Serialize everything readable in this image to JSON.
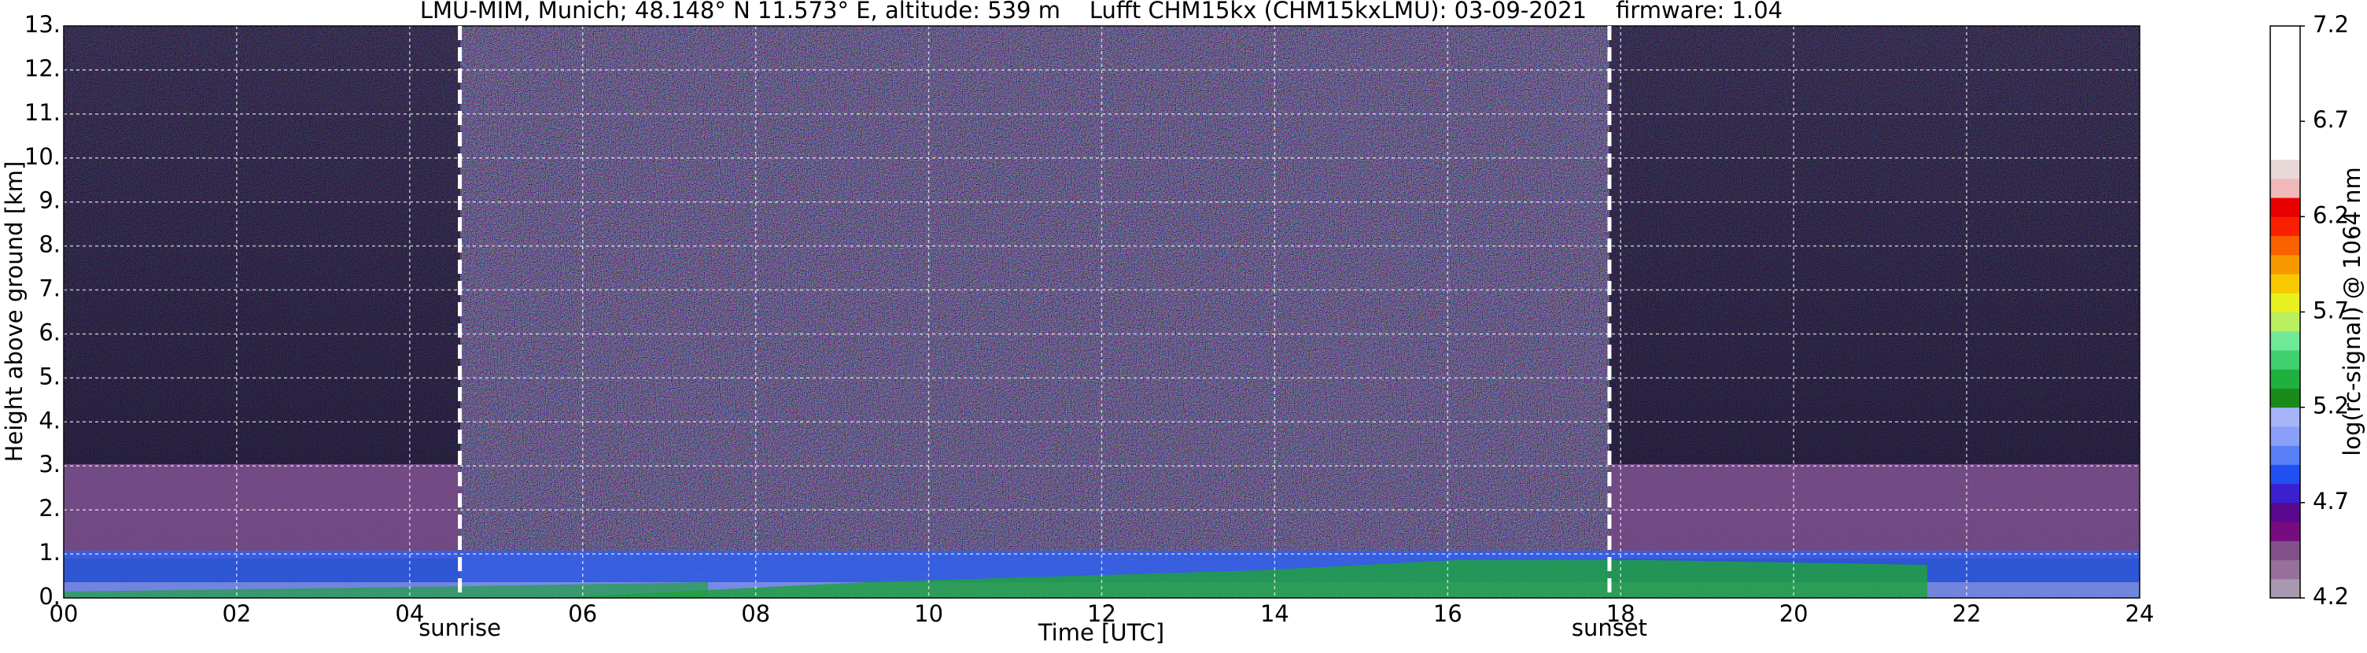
{
  "chart_data": {
    "type": "heatmap",
    "title": "LMU-MIM, Munich; 48.148° N 11.573° E, altitude: 539 m    Lufft CHM15kx (CHM15kxLMU): 03-09-2021    firmware: 1.04",
    "x_label": "Time [UTC]",
    "y_label": "Height above ground [km]",
    "colorbar_label": "log(rc-signal) @ 1064 nm",
    "xlim": [
      0,
      24
    ],
    "xticks": [
      {
        "value": 0,
        "label": "00"
      },
      {
        "value": 2,
        "label": "02"
      },
      {
        "value": 4,
        "label": "04"
      },
      {
        "value": 6,
        "label": "06"
      },
      {
        "value": 8,
        "label": "08"
      },
      {
        "value": 10,
        "label": "10"
      },
      {
        "value": 12,
        "label": "12"
      },
      {
        "value": 14,
        "label": "14"
      },
      {
        "value": 16,
        "label": "16"
      },
      {
        "value": 18,
        "label": "18"
      },
      {
        "value": 20,
        "label": "20"
      },
      {
        "value": 22,
        "label": "22"
      },
      {
        "value": 24,
        "label": "24"
      }
    ],
    "ylim": [
      0,
      13
    ],
    "yticks": [
      {
        "value": 0,
        "label": "0."
      },
      {
        "value": 1,
        "label": "1."
      },
      {
        "value": 2,
        "label": "2."
      },
      {
        "value": 3,
        "label": "3."
      },
      {
        "value": 4,
        "label": "4."
      },
      {
        "value": 5,
        "label": "5."
      },
      {
        "value": 6,
        "label": "6."
      },
      {
        "value": 7,
        "label": "7."
      },
      {
        "value": 8,
        "label": "8."
      },
      {
        "value": 9,
        "label": "9."
      },
      {
        "value": 10,
        "label": "10."
      },
      {
        "value": 11,
        "label": "11."
      },
      {
        "value": 12,
        "label": "12."
      },
      {
        "value": 13,
        "label": "13."
      }
    ],
    "clim": [
      4.2,
      7.2
    ],
    "cticks": [
      4.2,
      4.7,
      5.2,
      5.7,
      6.2,
      6.7,
      7.2
    ],
    "colormap": [
      "#a898b0",
      "#96709a",
      "#84508a",
      "#760c80",
      "#5a0890",
      "#3a20d0",
      "#2050f0",
      "#5a80f8",
      "#8aa0f8",
      "#a8b4f8",
      "#1a8a1a",
      "#20b040",
      "#40d070",
      "#70e898",
      "#b8f060",
      "#e8f020",
      "#f8c800",
      "#f89800",
      "#f86000",
      "#f82000",
      "#e80000",
      "#f0b8b8",
      "#e8d8d8",
      "#ffffff",
      "#ffffff",
      "#ffffff",
      "#ffffff",
      "#ffffff",
      "#ffffff",
      "#ffffff"
    ],
    "grid": true,
    "annotations": [
      {
        "text": "sunrise",
        "x": 4.58
      },
      {
        "text": "sunset",
        "x": 17.87
      }
    ]
  }
}
